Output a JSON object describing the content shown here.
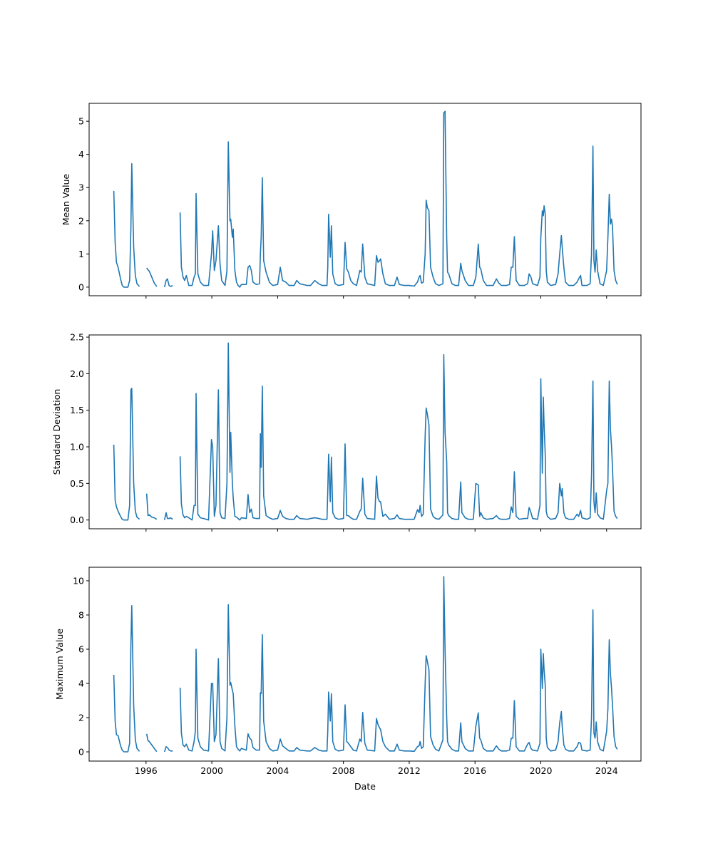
{
  "chart_data": [
    {
      "type": "line",
      "title": "",
      "xlabel": "",
      "ylabel": "Mean Value",
      "ylim": [
        -0.26,
        5.54
      ],
      "yticks": [
        0,
        1,
        2,
        3,
        4,
        5
      ],
      "series_key": "mean"
    },
    {
      "type": "line",
      "title": "",
      "xlabel": "",
      "ylabel": "Standard Deviation",
      "ylim": [
        -0.12,
        2.53
      ],
      "yticks": [
        0.0,
        0.5,
        1.0,
        1.5,
        2.0,
        2.5
      ],
      "series_key": "std"
    },
    {
      "type": "line",
      "title": "",
      "xlabel": "Date",
      "ylabel": "Maximum Value",
      "ylim": [
        -0.54,
        10.79
      ],
      "yticks": [
        0,
        2,
        4,
        6,
        8,
        10
      ],
      "series_key": "max"
    }
  ],
  "shared_x": {
    "xlim": [
      1992.54,
      2026.09
    ],
    "xticks": [
      1996,
      2000,
      2004,
      2008,
      2012,
      2016,
      2020,
      2024
    ],
    "columns": [
      "year",
      "mean",
      "std",
      "max"
    ],
    "rows": [
      [
        1994.04,
        2.9,
        1.03,
        4.5
      ],
      [
        1994.12,
        1.35,
        0.27,
        1.8
      ],
      [
        1994.2,
        0.75,
        0.18,
        1.0
      ],
      [
        1994.3,
        0.6,
        0.12,
        0.95
      ],
      [
        1994.45,
        0.25,
        0.05,
        0.35
      ],
      [
        1994.55,
        0.05,
        0.01,
        0.1
      ],
      [
        1994.65,
        0.0,
        0.0,
        0.0
      ],
      [
        1994.9,
        0.0,
        0.0,
        0.0
      ],
      [
        1995.0,
        0.2,
        0.2,
        0.5
      ],
      [
        1995.08,
        1.8,
        1.78,
        6.3
      ],
      [
        1995.13,
        3.72,
        1.8,
        8.55
      ],
      [
        1995.25,
        1.2,
        0.5,
        2.7
      ],
      [
        1995.35,
        0.35,
        0.12,
        0.7
      ],
      [
        1995.45,
        0.1,
        0.04,
        0.2
      ],
      [
        1995.6,
        0.02,
        0.01,
        0.03
      ],
      [
        null,
        null,
        null,
        null
      ],
      [
        1996.04,
        0.58,
        0.36,
        1.05
      ],
      [
        1996.12,
        0.52,
        0.06,
        0.65
      ],
      [
        1996.2,
        0.48,
        0.07,
        0.6
      ],
      [
        1996.35,
        0.3,
        0.04,
        0.4
      ],
      [
        1996.5,
        0.12,
        0.03,
        0.2
      ],
      [
        1996.65,
        0.02,
        0.01,
        0.02
      ],
      [
        null,
        null,
        null,
        null
      ],
      [
        1997.12,
        0.0,
        0.0,
        0.0
      ],
      [
        1997.22,
        0.2,
        0.1,
        0.3
      ],
      [
        1997.3,
        0.25,
        0.02,
        0.25
      ],
      [
        1997.4,
        0.05,
        0.02,
        0.1
      ],
      [
        1997.5,
        0.02,
        0.03,
        0.05
      ],
      [
        1997.62,
        0.05,
        0.01,
        0.05
      ],
      [
        null,
        null,
        null,
        null
      ],
      [
        1998.07,
        2.25,
        0.87,
        3.75
      ],
      [
        1998.15,
        0.6,
        0.22,
        1.1
      ],
      [
        1998.25,
        0.3,
        0.07,
        0.4
      ],
      [
        1998.35,
        0.2,
        0.03,
        0.3
      ],
      [
        1998.45,
        0.35,
        0.05,
        0.45
      ],
      [
        1998.6,
        0.05,
        0.03,
        0.1
      ],
      [
        1998.8,
        0.05,
        0.0,
        0.05
      ],
      [
        1998.92,
        0.3,
        0.2,
        0.6
      ],
      [
        1999.0,
        0.4,
        0.2,
        1.2
      ],
      [
        1999.04,
        2.82,
        1.73,
        6.0
      ],
      [
        1999.15,
        0.4,
        0.08,
        0.8
      ],
      [
        1999.3,
        0.15,
        0.03,
        0.3
      ],
      [
        1999.5,
        0.05,
        0.02,
        0.1
      ],
      [
        1999.8,
        0.05,
        0.0,
        0.05
      ],
      [
        1999.98,
        1.0,
        1.1,
        4.0
      ],
      [
        2000.05,
        1.7,
        1.0,
        4.0
      ],
      [
        2000.15,
        0.5,
        0.05,
        0.6
      ],
      [
        2000.25,
        0.8,
        0.2,
        1.0
      ],
      [
        2000.4,
        1.85,
        1.78,
        5.45
      ],
      [
        2000.5,
        0.7,
        0.1,
        0.6
      ],
      [
        2000.6,
        0.2,
        0.03,
        0.2
      ],
      [
        2000.8,
        0.05,
        0.02,
        0.05
      ],
      [
        2000.92,
        0.5,
        0.5,
        2.0
      ],
      [
        2001.0,
        4.38,
        2.42,
        8.6
      ],
      [
        2001.1,
        2.0,
        0.65,
        3.9
      ],
      [
        2001.15,
        2.05,
        1.2,
        4.05
      ],
      [
        2001.25,
        1.5,
        0.5,
        3.6
      ],
      [
        2001.3,
        1.75,
        0.3,
        3.4
      ],
      [
        2001.4,
        0.5,
        0.05,
        1.5
      ],
      [
        2001.5,
        0.15,
        0.04,
        0.3
      ],
      [
        2001.6,
        0.05,
        0.02,
        0.15
      ],
      [
        2001.7,
        0.0,
        0.0,
        0.05
      ],
      [
        2001.8,
        0.08,
        0.03,
        0.2
      ],
      [
        2002.1,
        0.08,
        0.02,
        0.1
      ],
      [
        2002.2,
        0.6,
        0.35,
        1.05
      ],
      [
        2002.3,
        0.65,
        0.1,
        0.8
      ],
      [
        2002.4,
        0.5,
        0.15,
        0.7
      ],
      [
        2002.5,
        0.15,
        0.03,
        0.25
      ],
      [
        2002.7,
        0.08,
        0.02,
        0.1
      ],
      [
        2002.9,
        0.1,
        0.02,
        0.1
      ],
      [
        2002.95,
        1.0,
        1.18,
        3.45
      ],
      [
        2003.0,
        1.5,
        0.72,
        3.4
      ],
      [
        2003.07,
        3.3,
        1.83,
        6.85
      ],
      [
        2003.15,
        0.8,
        0.33,
        1.8
      ],
      [
        2003.3,
        0.45,
        0.06,
        0.6
      ],
      [
        2003.5,
        0.15,
        0.03,
        0.2
      ],
      [
        2003.7,
        0.05,
        0.01,
        0.05
      ],
      [
        2004.0,
        0.08,
        0.02,
        0.1
      ],
      [
        2004.16,
        0.6,
        0.13,
        0.75
      ],
      [
        2004.3,
        0.2,
        0.05,
        0.35
      ],
      [
        2004.5,
        0.15,
        0.02,
        0.2
      ],
      [
        2004.7,
        0.05,
        0.01,
        0.05
      ],
      [
        2005.0,
        0.05,
        0.01,
        0.05
      ],
      [
        2005.16,
        0.2,
        0.06,
        0.25
      ],
      [
        2005.35,
        0.1,
        0.02,
        0.1
      ],
      [
        2005.8,
        0.05,
        0.01,
        0.05
      ],
      [
        2006.0,
        0.05,
        0.02,
        0.05
      ],
      [
        2006.26,
        0.2,
        0.03,
        0.25
      ],
      [
        2006.5,
        0.1,
        0.02,
        0.1
      ],
      [
        2006.7,
        0.05,
        0.01,
        0.05
      ],
      [
        2007.0,
        0.05,
        0.01,
        0.05
      ],
      [
        2007.05,
        0.6,
        0.4,
        1.2
      ],
      [
        2007.1,
        2.2,
        0.9,
        3.5
      ],
      [
        2007.2,
        0.9,
        0.25,
        1.8
      ],
      [
        2007.27,
        1.85,
        0.86,
        3.4
      ],
      [
        2007.35,
        0.4,
        0.1,
        0.6
      ],
      [
        2007.5,
        0.1,
        0.03,
        0.15
      ],
      [
        2007.7,
        0.05,
        0.01,
        0.05
      ],
      [
        2008.0,
        0.08,
        0.02,
        0.1
      ],
      [
        2008.1,
        1.35,
        1.04,
        2.75
      ],
      [
        2008.2,
        0.55,
        0.06,
        0.6
      ],
      [
        2008.3,
        0.45,
        0.06,
        0.5
      ],
      [
        2008.45,
        0.2,
        0.03,
        0.3
      ],
      [
        2008.6,
        0.1,
        0.01,
        0.1
      ],
      [
        2008.8,
        0.05,
        0.01,
        0.05
      ],
      [
        2009.0,
        0.5,
        0.12,
        0.75
      ],
      [
        2009.08,
        0.45,
        0.15,
        0.6
      ],
      [
        2009.17,
        1.3,
        0.57,
        2.3
      ],
      [
        2009.3,
        0.3,
        0.08,
        0.5
      ],
      [
        2009.45,
        0.1,
        0.02,
        0.1
      ],
      [
        2009.9,
        0.05,
        0.01,
        0.05
      ],
      [
        2010.01,
        0.95,
        0.6,
        1.95
      ],
      [
        2010.1,
        0.75,
        0.3,
        1.6
      ],
      [
        2010.2,
        0.8,
        0.25,
        1.4
      ],
      [
        2010.26,
        0.85,
        0.25,
        1.3
      ],
      [
        2010.4,
        0.4,
        0.05,
        0.6
      ],
      [
        2010.55,
        0.1,
        0.08,
        0.3
      ],
      [
        2010.8,
        0.05,
        0.01,
        0.05
      ],
      [
        2011.1,
        0.05,
        0.02,
        0.05
      ],
      [
        2011.26,
        0.3,
        0.07,
        0.45
      ],
      [
        2011.4,
        0.08,
        0.02,
        0.1
      ],
      [
        2011.7,
        0.05,
        0.01,
        0.05
      ],
      [
        2012.0,
        0.05,
        0.01,
        0.05
      ],
      [
        2012.3,
        0.03,
        0.01,
        0.03
      ],
      [
        2012.5,
        0.15,
        0.14,
        0.3
      ],
      [
        2012.6,
        0.3,
        0.1,
        0.35
      ],
      [
        2012.66,
        0.35,
        0.2,
        0.6
      ],
      [
        2012.75,
        0.12,
        0.05,
        0.2
      ],
      [
        2012.85,
        0.15,
        0.08,
        0.3
      ],
      [
        2012.97,
        1.0,
        1.15,
        4.0
      ],
      [
        2013.03,
        2.62,
        1.53,
        5.62
      ],
      [
        2013.1,
        2.4,
        1.45,
        5.3
      ],
      [
        2013.2,
        2.3,
        1.3,
        4.8
      ],
      [
        2013.3,
        0.6,
        0.15,
        0.9
      ],
      [
        2013.45,
        0.3,
        0.05,
        0.4
      ],
      [
        2013.6,
        0.1,
        0.02,
        0.15
      ],
      [
        2013.8,
        0.05,
        0.01,
        0.05
      ],
      [
        2014.05,
        0.1,
        0.07,
        0.7
      ],
      [
        2014.1,
        5.25,
        2.26,
        10.25
      ],
      [
        2014.18,
        5.3,
        1.2,
        6.0
      ],
      [
        2014.28,
        1.5,
        0.8,
        2.0
      ],
      [
        2014.33,
        0.45,
        0.1,
        0.6
      ],
      [
        2014.4,
        0.4,
        0.06,
        0.4
      ],
      [
        2014.6,
        0.1,
        0.02,
        0.15
      ],
      [
        2014.8,
        0.05,
        0.01,
        0.05
      ],
      [
        2015.0,
        0.05,
        0.01,
        0.05
      ],
      [
        2015.13,
        0.72,
        0.52,
        1.7
      ],
      [
        2015.2,
        0.5,
        0.1,
        0.6
      ],
      [
        2015.4,
        0.2,
        0.03,
        0.2
      ],
      [
        2015.6,
        0.05,
        0.01,
        0.05
      ],
      [
        2015.9,
        0.05,
        0.01,
        0.05
      ],
      [
        2016.05,
        0.3,
        0.5,
        1.5
      ],
      [
        2016.2,
        1.3,
        0.48,
        2.28
      ],
      [
        2016.28,
        0.6,
        0.05,
        0.8
      ],
      [
        2016.35,
        0.55,
        0.1,
        0.7
      ],
      [
        2016.5,
        0.2,
        0.03,
        0.2
      ],
      [
        2016.7,
        0.05,
        0.01,
        0.05
      ],
      [
        2017.1,
        0.05,
        0.02,
        0.05
      ],
      [
        2017.3,
        0.25,
        0.06,
        0.35
      ],
      [
        2017.45,
        0.12,
        0.02,
        0.15
      ],
      [
        2017.6,
        0.05,
        0.01,
        0.05
      ],
      [
        2017.9,
        0.05,
        0.01,
        0.05
      ],
      [
        2018.1,
        0.08,
        0.02,
        0.1
      ],
      [
        2018.2,
        0.6,
        0.18,
        0.8
      ],
      [
        2018.3,
        0.6,
        0.1,
        0.8
      ],
      [
        2018.39,
        1.52,
        0.66,
        3.0
      ],
      [
        2018.5,
        0.2,
        0.05,
        0.3
      ],
      [
        2018.7,
        0.05,
        0.01,
        0.05
      ],
      [
        2019.0,
        0.05,
        0.02,
        0.05
      ],
      [
        2019.2,
        0.1,
        0.02,
        0.45
      ],
      [
        2019.29,
        0.4,
        0.17,
        0.55
      ],
      [
        2019.4,
        0.3,
        0.1,
        0.2
      ],
      [
        2019.5,
        0.1,
        0.02,
        0.1
      ],
      [
        2019.8,
        0.05,
        0.01,
        0.05
      ],
      [
        2019.95,
        0.3,
        0.2,
        0.5
      ],
      [
        2020.0,
        1.5,
        1.93,
        6.0
      ],
      [
        2020.09,
        2.3,
        0.64,
        3.7
      ],
      [
        2020.15,
        2.15,
        1.68,
        5.75
      ],
      [
        2020.2,
        2.45,
        1.3,
        4.8
      ],
      [
        2020.27,
        2.2,
        0.9,
        3.9
      ],
      [
        2020.33,
        0.5,
        0.12,
        0.8
      ],
      [
        2020.4,
        0.15,
        0.05,
        0.25
      ],
      [
        2020.6,
        0.05,
        0.01,
        0.05
      ],
      [
        2020.9,
        0.08,
        0.02,
        0.1
      ],
      [
        2021.05,
        0.4,
        0.1,
        0.6
      ],
      [
        2021.15,
        1.0,
        0.5,
        1.7
      ],
      [
        2021.25,
        1.55,
        0.33,
        2.35
      ],
      [
        2021.3,
        1.2,
        0.43,
        1.5
      ],
      [
        2021.4,
        0.6,
        0.1,
        0.4
      ],
      [
        2021.5,
        0.15,
        0.03,
        0.15
      ],
      [
        2021.7,
        0.05,
        0.01,
        0.05
      ],
      [
        2022.0,
        0.05,
        0.01,
        0.05
      ],
      [
        2022.2,
        0.15,
        0.08,
        0.3
      ],
      [
        2022.3,
        0.25,
        0.05,
        0.55
      ],
      [
        2022.42,
        0.35,
        0.13,
        0.5
      ],
      [
        2022.5,
        0.05,
        0.03,
        0.1
      ],
      [
        2022.8,
        0.05,
        0.01,
        0.05
      ],
      [
        2023.0,
        0.1,
        0.03,
        0.1
      ],
      [
        2023.08,
        1.0,
        0.6,
        2.0
      ],
      [
        2023.17,
        4.25,
        1.9,
        8.3
      ],
      [
        2023.23,
        0.8,
        0.25,
        1.1
      ],
      [
        2023.3,
        0.45,
        0.1,
        0.8
      ],
      [
        2023.37,
        1.12,
        0.37,
        1.75
      ],
      [
        2023.45,
        0.5,
        0.08,
        0.6
      ],
      [
        2023.6,
        0.1,
        0.03,
        0.15
      ],
      [
        2023.8,
        0.05,
        0.01,
        0.05
      ],
      [
        2024.0,
        0.5,
        0.4,
        1.2
      ],
      [
        2024.08,
        1.5,
        0.5,
        2.5
      ],
      [
        2024.16,
        2.8,
        1.9,
        6.55
      ],
      [
        2024.23,
        1.9,
        1.25,
        4.6
      ],
      [
        2024.3,
        2.05,
        1.0,
        3.7
      ],
      [
        2024.36,
        1.8,
        0.7,
        2.7
      ],
      [
        2024.45,
        0.5,
        0.12,
        0.9
      ],
      [
        2024.55,
        0.2,
        0.05,
        0.3
      ],
      [
        2024.65,
        0.08,
        0.02,
        0.15
      ]
    ]
  }
}
